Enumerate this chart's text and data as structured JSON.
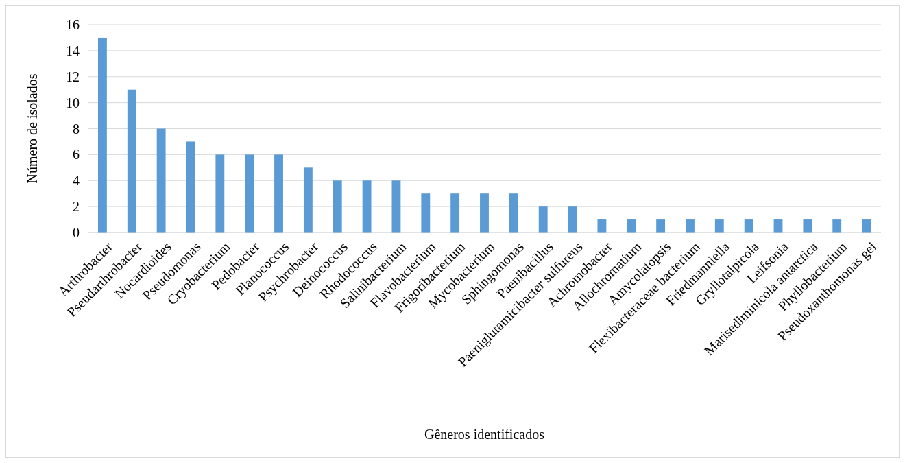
{
  "chart_data": {
    "type": "bar",
    "xlabel": "Gêneros identificados",
    "ylabel": "Número de isolados",
    "categories": [
      "Arthrobacter",
      "Pseudarthrobacter",
      "Nocardioides",
      "Pseudomonas",
      "Cryobacterium",
      "Pedobacter",
      "Planococcus",
      "Psychrobacter",
      "Deinococcus",
      "Rhodococcus",
      "Salinibacterium",
      "Flavobacterium",
      "Frigoribacterium",
      "Mycobacterium",
      "Sphingomonas",
      "Paenibacillus",
      "Paeniglutamicibacter sulfureus",
      "Achromobacter",
      "Allochromatium",
      "Amycolatopsis",
      "Flexibacteraceae bacterium",
      "Friedmanniella",
      "Gryllotalpicola",
      "Leifsonia",
      "Marisediminicola antarctica",
      "Phyllobacterium",
      "Pseudoxanthomonas gei"
    ],
    "values": [
      15,
      11,
      8,
      7,
      6,
      6,
      6,
      5,
      4,
      4,
      4,
      3,
      3,
      3,
      3,
      2,
      2,
      1,
      1,
      1,
      1,
      1,
      1,
      1,
      1,
      1,
      1
    ],
    "color": "#5b9bd5",
    "ylim": [
      0,
      16
    ],
    "yticks": [
      0,
      2,
      4,
      6,
      8,
      10,
      12,
      14,
      16
    ],
    "grid": "y"
  }
}
